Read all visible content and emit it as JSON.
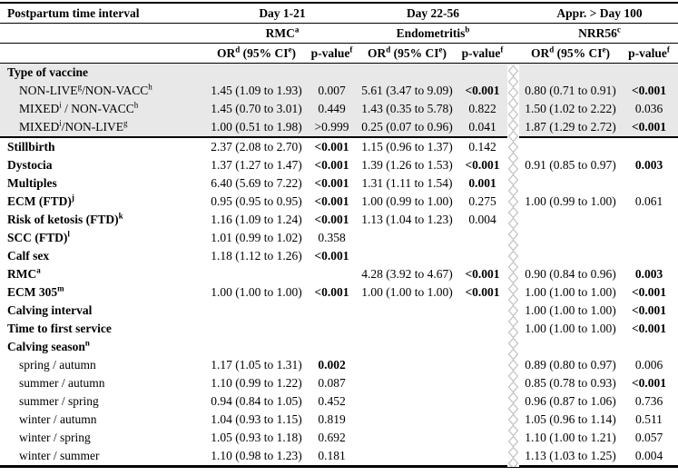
{
  "table": {
    "corner_label": "Postpartum time interval",
    "intervals": [
      "Day 1-21",
      "Day 22-56",
      "Appr. > Day 100"
    ],
    "outcomes": [
      {
        "text": "RMC",
        "sup": "a"
      },
      {
        "text": "Endometritis",
        "sup": "b"
      },
      {
        "text": "NRR56",
        "sup": "c"
      }
    ],
    "measure": {
      "or": "OR",
      "or_sup": "d",
      "ci": " (95% CI",
      "ci_sup": "e",
      "ci_close": ")",
      "p": "p-value",
      "p_sup": "f"
    },
    "colors": {
      "shaded_row_bg": "#e8e8e8",
      "seam_stroke": "#c0c0c0",
      "rule": "#000000",
      "text": "#000000"
    },
    "rows": [
      {
        "label": [
          {
            "t": "Type of vaccine"
          }
        ],
        "bold": true,
        "indent": false,
        "shaded": true,
        "section_end": false,
        "cells": [
          null,
          null,
          null
        ]
      },
      {
        "label": [
          {
            "t": "NON-LIVE"
          },
          {
            "s": "g"
          },
          {
            "t": "/NON-VACC"
          },
          {
            "s": "h"
          }
        ],
        "bold": false,
        "indent": true,
        "shaded": true,
        "section_end": false,
        "cells": [
          {
            "or": "1.45 (1.09 to 1.93)",
            "p": "0.007",
            "pb": false
          },
          {
            "or": "5.61 (3.47 to 9.09)",
            "p": "<0.001",
            "pb": true
          },
          {
            "or": "0.80 (0.71 to 0.91)",
            "p": "<0.001",
            "pb": true
          }
        ]
      },
      {
        "label": [
          {
            "t": "MIXED"
          },
          {
            "s": "i"
          },
          {
            "t": " / NON-VACC"
          },
          {
            "s": "h"
          }
        ],
        "bold": false,
        "indent": true,
        "shaded": true,
        "section_end": false,
        "cells": [
          {
            "or": "1.45 (0.70 to 3.01)",
            "p": "0.449",
            "pb": false
          },
          {
            "or": "1.43 (0.35 to 5.78)",
            "p": "0.822",
            "pb": false
          },
          {
            "or": "1.50 (1.02 to 2.22)",
            "p": "0.036",
            "pb": false
          }
        ]
      },
      {
        "label": [
          {
            "t": "MIXED"
          },
          {
            "s": "i"
          },
          {
            "t": "/NON-LIVE"
          },
          {
            "s": "g"
          }
        ],
        "bold": false,
        "indent": true,
        "shaded": true,
        "section_end": true,
        "cells": [
          {
            "or": "1.00 (0.51 to 1.98)",
            "p": ">0.999",
            "pb": false
          },
          {
            "or": "0.25 (0.07 to 0.96)",
            "p": "0.041",
            "pb": false
          },
          {
            "or": "1.87 (1.29 to 2.72)",
            "p": "<0.001",
            "pb": true
          }
        ]
      },
      {
        "label": [
          {
            "t": "Stillbirth"
          }
        ],
        "bold": true,
        "indent": false,
        "shaded": false,
        "section_end": false,
        "cells": [
          {
            "or": "2.37 (2.08 to 2.70)",
            "p": "<0.001",
            "pb": true
          },
          {
            "or": "1.15 (0.96 to 1.37)",
            "p": "0.142",
            "pb": false
          },
          null
        ]
      },
      {
        "label": [
          {
            "t": "Dystocia"
          }
        ],
        "bold": true,
        "indent": false,
        "shaded": false,
        "section_end": false,
        "cells": [
          {
            "or": "1.37 (1.27 to 1.47)",
            "p": "<0.001",
            "pb": true
          },
          {
            "or": "1.39 (1.26 to 1.53)",
            "p": "<0.001",
            "pb": true
          },
          {
            "or": "0.91 (0.85 to 0.97)",
            "p": "0.003",
            "pb": true
          }
        ]
      },
      {
        "label": [
          {
            "t": "Multiples"
          }
        ],
        "bold": true,
        "indent": false,
        "shaded": false,
        "section_end": false,
        "cells": [
          {
            "or": "6.40 (5.69 to 7.22)",
            "p": "<0.001",
            "pb": true
          },
          {
            "or": "1.31 (1.11 to 1.54)",
            "p": "0.001",
            "pb": true
          },
          null
        ]
      },
      {
        "label": [
          {
            "t": "ECM (FTD)"
          },
          {
            "s": "j"
          }
        ],
        "bold": true,
        "indent": false,
        "shaded": false,
        "section_end": false,
        "cells": [
          {
            "or": "0.95 (0.95 to 0.95)",
            "p": "<0.001",
            "pb": true
          },
          {
            "or": "1.00 (0.99 to 1.00)",
            "p": "0.275",
            "pb": false
          },
          {
            "or": "1.00 (0.99 to 1.00)",
            "p": "0.061",
            "pb": false
          }
        ]
      },
      {
        "label": [
          {
            "t": "Risk of ketosis (FTD)"
          },
          {
            "s": "k"
          }
        ],
        "bold": true,
        "indent": false,
        "shaded": false,
        "section_end": false,
        "cells": [
          {
            "or": "1.16 (1.09 to 1.24)",
            "p": "<0.001",
            "pb": true
          },
          {
            "or": "1.13 (1.04 to 1.23)",
            "p": "0.004",
            "pb": false
          },
          null
        ]
      },
      {
        "label": [
          {
            "t": "SCC (FTD)"
          },
          {
            "s": "l"
          }
        ],
        "bold": true,
        "indent": false,
        "shaded": false,
        "section_end": false,
        "cells": [
          {
            "or": "1.01 (0.99 to 1.02)",
            "p": "0.358",
            "pb": false
          },
          null,
          null
        ]
      },
      {
        "label": [
          {
            "t": "Calf sex"
          }
        ],
        "bold": true,
        "indent": false,
        "shaded": false,
        "section_end": false,
        "cells": [
          {
            "or": "1.18 (1.12 to 1.26)",
            "p": "<0.001",
            "pb": true
          },
          null,
          null
        ]
      },
      {
        "label": [
          {
            "t": "RMC"
          },
          {
            "s": "a"
          }
        ],
        "bold": true,
        "indent": false,
        "shaded": false,
        "section_end": false,
        "cells": [
          null,
          {
            "or": "4.28 (3.92 to 4.67)",
            "p": "<0.001",
            "pb": true
          },
          {
            "or": "0.90 (0.84 to 0.96)",
            "p": "0.003",
            "pb": true
          }
        ]
      },
      {
        "label": [
          {
            "t": "ECM 305"
          },
          {
            "s": "m"
          }
        ],
        "bold": true,
        "indent": false,
        "shaded": false,
        "section_end": false,
        "cells": [
          {
            "or": "1.00 (1.00 to 1.00)",
            "p": "<0.001",
            "pb": true
          },
          {
            "or": "1.00 (1.00 to 1.00)",
            "p": "<0.001",
            "pb": true
          },
          {
            "or": "1.00 (1.00 to 1.00)",
            "p": "<0.001",
            "pb": true
          }
        ]
      },
      {
        "label": [
          {
            "t": "Calving interval"
          }
        ],
        "bold": true,
        "indent": false,
        "shaded": false,
        "section_end": false,
        "cells": [
          null,
          null,
          {
            "or": "1.00 (1.00 to 1.00)",
            "p": "<0.001",
            "pb": true
          }
        ]
      },
      {
        "label": [
          {
            "t": "Time to first service"
          }
        ],
        "bold": true,
        "indent": false,
        "shaded": false,
        "section_end": false,
        "cells": [
          null,
          null,
          {
            "or": "1.00 (1.00 to 1.00)",
            "p": "<0.001",
            "pb": true
          }
        ]
      },
      {
        "label": [
          {
            "t": "Calving season"
          },
          {
            "s": "n"
          }
        ],
        "bold": true,
        "indent": false,
        "shaded": false,
        "section_end": false,
        "cells": [
          null,
          null,
          null
        ]
      },
      {
        "label": [
          {
            "t": "spring / autumn"
          }
        ],
        "bold": false,
        "indent": true,
        "shaded": false,
        "section_end": false,
        "cells": [
          {
            "or": "1.17 (1.05 to 1.31)",
            "p": "0.002",
            "pb": true
          },
          null,
          {
            "or": "0.89 (0.80 to 0.97)",
            "p": "0.006",
            "pb": false
          }
        ]
      },
      {
        "label": [
          {
            "t": "summer / autumn"
          }
        ],
        "bold": false,
        "indent": true,
        "shaded": false,
        "section_end": false,
        "cells": [
          {
            "or": "1.10 (0.99 to 1.22)",
            "p": "0.087",
            "pb": false
          },
          null,
          {
            "or": "0.85 (0.78 to 0.93)",
            "p": "<0.001",
            "pb": true
          }
        ]
      },
      {
        "label": [
          {
            "t": "summer / spring"
          }
        ],
        "bold": false,
        "indent": true,
        "shaded": false,
        "section_end": false,
        "cells": [
          {
            "or": "0.94 (0.84 to 1.05)",
            "p": "0.452",
            "pb": false
          },
          null,
          {
            "or": "0.96 (0.87 to 1.06)",
            "p": "0.736",
            "pb": false
          }
        ]
      },
      {
        "label": [
          {
            "t": "winter / autumn"
          }
        ],
        "bold": false,
        "indent": true,
        "shaded": false,
        "section_end": false,
        "cells": [
          {
            "or": "1.04 (0.93 to 1.15)",
            "p": "0.819",
            "pb": false
          },
          null,
          {
            "or": "1.05 (0.96 to 1.14)",
            "p": "0.511",
            "pb": false
          }
        ]
      },
      {
        "label": [
          {
            "t": "winter / spring"
          }
        ],
        "bold": false,
        "indent": true,
        "shaded": false,
        "section_end": false,
        "cells": [
          {
            "or": "1.05 (0.93 to 1.18)",
            "p": "0.692",
            "pb": false
          },
          null,
          {
            "or": "1.10 (1.00 to 1.21)",
            "p": "0.057",
            "pb": false
          }
        ]
      },
      {
        "label": [
          {
            "t": "winter / summer"
          }
        ],
        "bold": false,
        "indent": true,
        "shaded": false,
        "section_end": false,
        "cells": [
          {
            "or": "1.10 (0.98 to 1.23)",
            "p": "0.181",
            "pb": false
          },
          null,
          {
            "or": "1.13 (1.03 to 1.25)",
            "p": "0.004",
            "pb": false
          }
        ]
      }
    ]
  }
}
